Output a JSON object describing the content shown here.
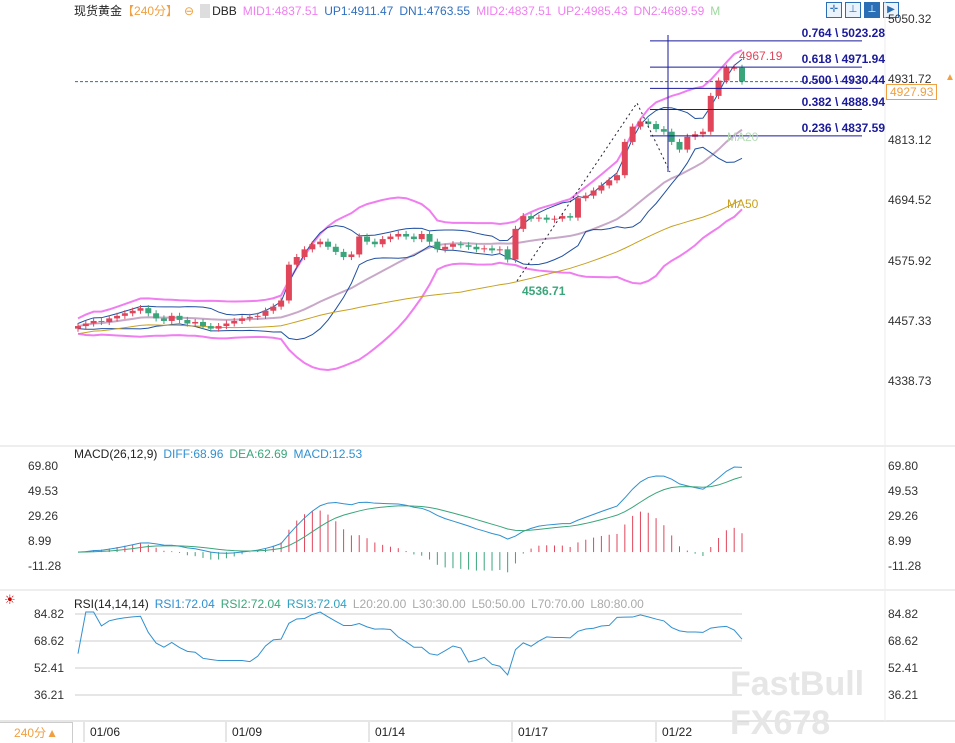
{
  "header": {
    "symbol": "现货黄金",
    "period": "【240分】",
    "indicator": "DBB",
    "mid1": "MID1:4837.51",
    "up1": "UP1:4911.47",
    "dn1": "DN1:4763.55",
    "mid2": "MID2:4837.51",
    "up2": "UP2:4985.43",
    "dn2": "DN2:4689.59",
    "m": "M"
  },
  "toolbar": [
    "crosshair",
    "fit-y",
    "fit-xy",
    "goto-end"
  ],
  "price_axis": [
    "5050.32",
    "4931.72",
    "4813.12",
    "4694.52",
    "4575.92",
    "4457.33",
    "4338.73"
  ],
  "last_price": "4927.93",
  "fib": [
    {
      "label": "0.764 \\ 5023.28",
      "price": 5023.28
    },
    {
      "label": "0.618 \\ 4971.94",
      "price": 4971.94
    },
    {
      "label": "0.500 \\ 4930.44",
      "price": 4930.44
    },
    {
      "label": "0.382 \\ 4888.94",
      "price": 4888.94
    },
    {
      "label": "0.236 \\ 4837.59",
      "price": 4837.59
    }
  ],
  "annotations": {
    "high": "4967.19",
    "low": "4536.71",
    "ma20": "MA20",
    "ma50": "MA50"
  },
  "macd": {
    "title": "MACD(26,12,9)",
    "diff": "DIFF:68.96",
    "dea": "DEA:62.69",
    "macd": "MACD:12.53",
    "axis": [
      "69.80",
      "49.53",
      "29.26",
      "8.99",
      "-11.28"
    ]
  },
  "rsi": {
    "title": "RSI(14,14,14)",
    "rsi1": "RSI1:72.04",
    "rsi2": "RSI2:72.04",
    "rsi3": "RSI3:72.04",
    "l20": "L20:20.00",
    "l30": "L30:30.00",
    "l50": "L50:50.00",
    "l70": "L70:70.00",
    "l80": "L80:80.00",
    "axis": [
      "84.82",
      "68.62",
      "52.41",
      "36.21"
    ]
  },
  "time_axis": [
    "01/06",
    "01/09",
    "01/14",
    "01/17",
    "01/22"
  ],
  "period_button": "240分▲",
  "watermark": "FastBull FX678",
  "colors": {
    "up": "#e0455a",
    "down": "#3aa57a",
    "boll": "#f07ef0",
    "mid": "#c8a8c8",
    "ma50": "#c8a020"
  },
  "chart_data": {
    "type": "candlestick",
    "closes": [
      4450,
      4455,
      4460,
      4458,
      4465,
      4470,
      4475,
      4480,
      4485,
      4475,
      4465,
      4460,
      4470,
      4462,
      4455,
      4458,
      4450,
      4445,
      4450,
      4455,
      4460,
      4465,
      4468,
      4470,
      4480,
      4488,
      4500,
      4570,
      4585,
      4600,
      4610,
      4615,
      4605,
      4595,
      4585,
      4590,
      4625,
      4615,
      4610,
      4620,
      4625,
      4630,
      4625,
      4620,
      4630,
      4615,
      4600,
      4605,
      4610,
      4608,
      4605,
      4600,
      4602,
      4598,
      4600,
      4580,
      4640,
      4665,
      4660,
      4662,
      4658,
      4660,
      4665,
      4662,
      4700,
      4705,
      4715,
      4725,
      4735,
      4745,
      4810,
      4840,
      4850,
      4845,
      4835,
      4830,
      4810,
      4795,
      4820,
      4825,
      4830,
      4900,
      4930,
      4955,
      4955,
      4928
    ]
  }
}
